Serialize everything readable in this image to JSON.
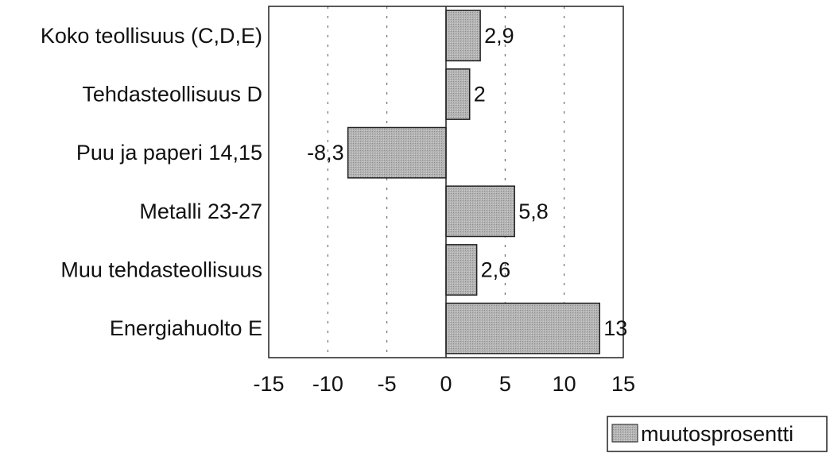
{
  "chart_data": {
    "type": "bar",
    "orientation": "horizontal",
    "categories": [
      "Koko teollisuus (C,D,E)",
      "Tehdasteollisuus D",
      "Puu ja paperi 14,15",
      "Metalli 23-27",
      "Muu tehdasteollisuus",
      "Energiahuolto E"
    ],
    "series": [
      {
        "name": "muutosprosentti",
        "values": [
          2.9,
          2,
          -8.3,
          5.8,
          2.6,
          13
        ],
        "data_labels": [
          "2,9",
          "2",
          "-8,3",
          "5,8",
          "2,6",
          "13"
        ]
      }
    ],
    "title": "",
    "xlabel": "",
    "ylabel": "",
    "xlim": [
      -15,
      15
    ],
    "x_ticks": [
      -15,
      -10,
      -5,
      0,
      5,
      10,
      15
    ],
    "x_tick_labels": [
      "-15",
      "-10",
      "-5",
      "0",
      "5",
      "10",
      "15"
    ],
    "grid": "vertical dashed",
    "legend_position": "bottom-right",
    "bar_color": "#a8a8a8",
    "bar_border_color": "#222222"
  }
}
